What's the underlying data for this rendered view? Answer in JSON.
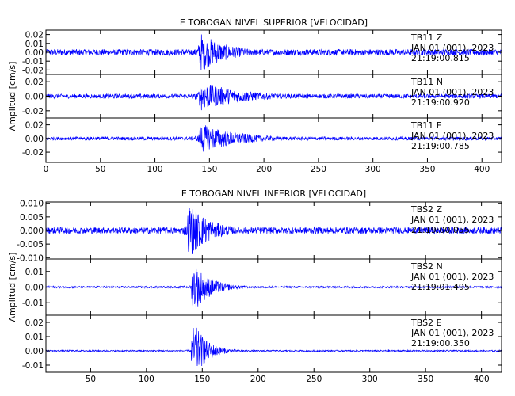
{
  "chart_data": [
    {
      "type": "line",
      "title": "E TOBOGAN NIVEL SUPERIOR [VELOCIDAD]",
      "ylabel": "Amplitud [cm/s]",
      "xlabel": "",
      "xlim": [
        0,
        418
      ],
      "x_ticks": [
        0,
        50,
        100,
        150,
        200,
        250,
        300,
        350,
        400
      ],
      "x_tick_labels": [
        "0",
        "50",
        "100",
        "150",
        "200",
        "250",
        "300",
        "350",
        "400"
      ],
      "grid": false,
      "series_color": "#0000ff",
      "traces": [
        {
          "station": "TB11",
          "channel": "Z",
          "date": "JAN 01 (001), 2023",
          "time": "21:19:00.815",
          "ylim": [
            -0.025,
            0.025
          ],
          "y_ticks": [
            0.02,
            0.01,
            0.0,
            -0.01,
            -0.02
          ],
          "y_tick_labels": [
            "0.02",
            "0.01",
            "0.00",
            "-0.01",
            "-0.02"
          ],
          "noise_amplitude": 0.0035,
          "onset": 140,
          "peak_amplitude": 0.022,
          "decay_seconds": 25
        },
        {
          "station": "TB11",
          "channel": "N",
          "date": "JAN 01 (001), 2023",
          "time": "21:19:00.920",
          "ylim": [
            -0.03,
            0.03
          ],
          "y_ticks": [
            0.02,
            0.0,
            -0.02
          ],
          "y_tick_labels": [
            "0.02",
            "0.00",
            "-0.02"
          ],
          "noise_amplitude": 0.003,
          "onset": 140,
          "peak_amplitude": 0.02,
          "decay_seconds": 40
        },
        {
          "station": "TB11",
          "channel": "E",
          "date": "JAN 01 (001), 2023",
          "time": "21:19:00.785",
          "ylim": [
            -0.035,
            0.03
          ],
          "y_ticks": [
            0.02,
            0.0,
            -0.02
          ],
          "y_tick_labels": [
            "0.02",
            "0.00",
            "-0.02"
          ],
          "noise_amplitude": 0.0025,
          "onset": 140,
          "peak_amplitude": 0.022,
          "decay_seconds": 35
        }
      ]
    },
    {
      "type": "line",
      "title": "E TOBOGAN NIVEL INFERIOR [VELOCIDAD]",
      "ylabel": "Amplitud [cm/s]",
      "xlabel": "",
      "xlim": [
        10,
        418
      ],
      "x_ticks": [
        50,
        100,
        150,
        200,
        250,
        300,
        350,
        400
      ],
      "x_tick_labels": [
        "50",
        "100",
        "150",
        "200",
        "250",
        "300",
        "350",
        "400"
      ],
      "grid": false,
      "series_color": "#0000ff",
      "traces": [
        {
          "station": "TBS2",
          "channel": "Z",
          "date": "JAN 01 (001), 2023",
          "time": "21:19:00.055",
          "ylim": [
            -0.0105,
            0.0105
          ],
          "y_ticks": [
            0.01,
            0.005,
            0.0,
            -0.005,
            -0.01
          ],
          "y_tick_labels": [
            "0.010",
            "0.005",
            "0.000",
            "-0.005",
            "-0.010"
          ],
          "noise_amplitude": 0.0012,
          "onset": 136,
          "peak_amplitude": 0.01,
          "decay_seconds": 20
        },
        {
          "station": "TBS2",
          "channel": "N",
          "date": "JAN 01 (001), 2023",
          "time": "21:19:01.495",
          "ylim": [
            -0.018,
            0.018
          ],
          "y_ticks": [
            0.01,
            0.0,
            -0.01
          ],
          "y_tick_labels": [
            "0.01",
            "0.00",
            "-0.01"
          ],
          "noise_amplitude": 0.0006,
          "onset": 140,
          "peak_amplitude": 0.016,
          "decay_seconds": 15
        },
        {
          "station": "TBS2",
          "channel": "E",
          "date": "JAN 01 (001), 2023",
          "time": "21:19:00.350",
          "ylim": [
            -0.015,
            0.025
          ],
          "y_ticks": [
            0.02,
            0.01,
            0.0,
            -0.01
          ],
          "y_tick_labels": [
            "0.02",
            "0.01",
            "0.00",
            "-0.01"
          ],
          "noise_amplitude": 0.0005,
          "onset": 140,
          "peak_amplitude": 0.02,
          "decay_seconds": 12
        }
      ]
    }
  ]
}
